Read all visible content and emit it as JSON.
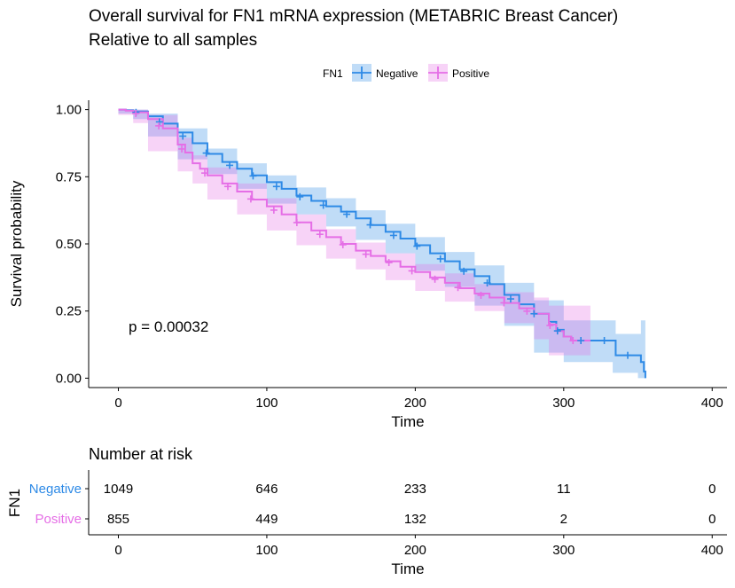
{
  "chart_data": [
    {
      "type": "line",
      "subtype": "kaplan-meier survival curve with confidence bands",
      "title": "Overall survival for FN1 mRNA expression (METABRIC Breast Cancer)",
      "subtitle": "Relative to all samples",
      "legend": {
        "title": "FN1",
        "position": "top",
        "entries": [
          "Negative",
          "Positive"
        ]
      },
      "xlabel": "Time",
      "ylabel": "Survival probability",
      "xlim": [
        -20,
        410
      ],
      "ylim": [
        -0.035,
        1.035
      ],
      "x_ticks": [
        0,
        100,
        200,
        300,
        400
      ],
      "y_ticks": [
        0.0,
        0.25,
        0.5,
        0.75,
        1.0
      ],
      "x_tick_labels": [
        "0",
        "100",
        "200",
        "300",
        "400"
      ],
      "y_tick_labels": [
        "0.00",
        "0.25",
        "0.50",
        "0.75",
        "1.00"
      ],
      "grid": false,
      "annotation": "p = 0.00032",
      "annotation_pos": [
        5,
        0.19
      ],
      "series": [
        {
          "name": "Negative",
          "color": "#2e8ae6",
          "points": [
            [
              0,
              1.0
            ],
            [
              5,
              0.998
            ],
            [
              10,
              0.993
            ],
            [
              20,
              0.975
            ],
            [
              30,
              0.948
            ],
            [
              40,
              0.915
            ],
            [
              50,
              0.875
            ],
            [
              60,
              0.835
            ],
            [
              70,
              0.805
            ],
            [
              80,
              0.78
            ],
            [
              90,
              0.755
            ],
            [
              100,
              0.73
            ],
            [
              110,
              0.705
            ],
            [
              120,
              0.68
            ],
            [
              130,
              0.66
            ],
            [
              140,
              0.64
            ],
            [
              150,
              0.62
            ],
            [
              160,
              0.595
            ],
            [
              170,
              0.57
            ],
            [
              180,
              0.545
            ],
            [
              190,
              0.52
            ],
            [
              200,
              0.495
            ],
            [
              210,
              0.465
            ],
            [
              220,
              0.435
            ],
            [
              230,
              0.405
            ],
            [
              240,
              0.38
            ],
            [
              250,
              0.35
            ],
            [
              260,
              0.31
            ],
            [
              270,
              0.275
            ],
            [
              280,
              0.24
            ],
            [
              290,
              0.21
            ],
            [
              295,
              0.18
            ],
            [
              300,
              0.155
            ],
            [
              305,
              0.14
            ],
            [
              320,
              0.14
            ],
            [
              333,
              0.14
            ],
            [
              335,
              0.085
            ],
            [
              340,
              0.085
            ],
            [
              350,
              0.085
            ],
            [
              352,
              0.06
            ],
            [
              354,
              0.025
            ],
            [
              355,
              0.0
            ]
          ],
          "ci_upper": [
            [
              0,
              1.0
            ],
            [
              10,
              1.0
            ],
            [
              20,
              0.985
            ],
            [
              40,
              0.93
            ],
            [
              60,
              0.855
            ],
            [
              80,
              0.8
            ],
            [
              100,
              0.755
            ],
            [
              120,
              0.71
            ],
            [
              140,
              0.67
            ],
            [
              160,
              0.625
            ],
            [
              180,
              0.575
            ],
            [
              200,
              0.525
            ],
            [
              220,
              0.47
            ],
            [
              240,
              0.42
            ],
            [
              260,
              0.355
            ],
            [
              280,
              0.29
            ],
            [
              300,
              0.215
            ],
            [
              320,
              0.215
            ],
            [
              333,
              0.215
            ],
            [
              335,
              0.165
            ],
            [
              350,
              0.165
            ],
            [
              352,
              0.215
            ],
            [
              355,
              0.215
            ]
          ],
          "ci_lower": [
            [
              0,
              1.0
            ],
            [
              10,
              0.985
            ],
            [
              20,
              0.965
            ],
            [
              40,
              0.9
            ],
            [
              60,
              0.815
            ],
            [
              80,
              0.76
            ],
            [
              100,
              0.705
            ],
            [
              120,
              0.65
            ],
            [
              140,
              0.61
            ],
            [
              160,
              0.565
            ],
            [
              180,
              0.515
            ],
            [
              200,
              0.465
            ],
            [
              220,
              0.4
            ],
            [
              240,
              0.34
            ],
            [
              260,
              0.27
            ],
            [
              280,
              0.195
            ],
            [
              300,
              0.095
            ],
            [
              320,
              0.06
            ],
            [
              333,
              0.06
            ],
            [
              335,
              0.02
            ],
            [
              350,
              0.02
            ],
            [
              352,
              0.0
            ],
            [
              355,
              0.0
            ]
          ],
          "censor_count": 22
        },
        {
          "name": "Positive",
          "color": "#e56ee6",
          "points": [
            [
              0,
              1.0
            ],
            [
              5,
              0.996
            ],
            [
              10,
              0.99
            ],
            [
              20,
              0.965
            ],
            [
              30,
              0.93
            ],
            [
              40,
              0.87
            ],
            [
              45,
              0.84
            ],
            [
              50,
              0.8
            ],
            [
              55,
              0.78
            ],
            [
              60,
              0.755
            ],
            [
              70,
              0.725
            ],
            [
              80,
              0.695
            ],
            [
              90,
              0.665
            ],
            [
              100,
              0.64
            ],
            [
              110,
              0.61
            ],
            [
              120,
              0.58
            ],
            [
              130,
              0.55
            ],
            [
              140,
              0.525
            ],
            [
              150,
              0.5
            ],
            [
              160,
              0.475
            ],
            [
              170,
              0.455
            ],
            [
              180,
              0.435
            ],
            [
              190,
              0.415
            ],
            [
              200,
              0.395
            ],
            [
              210,
              0.375
            ],
            [
              220,
              0.355
            ],
            [
              230,
              0.335
            ],
            [
              240,
              0.315
            ],
            [
              250,
              0.3
            ],
            [
              260,
              0.28
            ],
            [
              270,
              0.26
            ],
            [
              280,
              0.24
            ],
            [
              290,
              0.2
            ],
            [
              295,
              0.175
            ],
            [
              300,
              0.155
            ],
            [
              305,
              0.14
            ],
            [
              318,
              0.14
            ]
          ],
          "ci_upper": [
            [
              0,
              1.0
            ],
            [
              10,
              1.0
            ],
            [
              20,
              0.98
            ],
            [
              40,
              0.895
            ],
            [
              50,
              0.83
            ],
            [
              60,
              0.785
            ],
            [
              80,
              0.725
            ],
            [
              100,
              0.67
            ],
            [
              120,
              0.61
            ],
            [
              140,
              0.555
            ],
            [
              160,
              0.505
            ],
            [
              180,
              0.465
            ],
            [
              200,
              0.425
            ],
            [
              220,
              0.39
            ],
            [
              240,
              0.35
            ],
            [
              260,
              0.32
            ],
            [
              280,
              0.3
            ],
            [
              290,
              0.27
            ],
            [
              295,
              0.27
            ],
            [
              318,
              0.27
            ]
          ],
          "ci_lower": [
            [
              0,
              1.0
            ],
            [
              10,
              0.98
            ],
            [
              20,
              0.95
            ],
            [
              40,
              0.845
            ],
            [
              50,
              0.77
            ],
            [
              60,
              0.725
            ],
            [
              80,
              0.665
            ],
            [
              100,
              0.61
            ],
            [
              120,
              0.55
            ],
            [
              140,
              0.495
            ],
            [
              160,
              0.445
            ],
            [
              180,
              0.405
            ],
            [
              200,
              0.365
            ],
            [
              220,
              0.325
            ],
            [
              240,
              0.285
            ],
            [
              260,
              0.25
            ],
            [
              280,
              0.205
            ],
            [
              290,
              0.145
            ],
            [
              295,
              0.085
            ],
            [
              318,
              0.085
            ]
          ],
          "censor_count": 20
        }
      ]
    },
    {
      "type": "table",
      "title": "Number at risk",
      "ylabel": "FN1",
      "xlabel": "Time",
      "x_ticks": [
        0,
        100,
        200,
        300,
        400
      ],
      "x_tick_labels": [
        "0",
        "100",
        "200",
        "300",
        "400"
      ],
      "rows": [
        {
          "name": "Negative",
          "color": "#2e8ae6",
          "values": [
            "1049",
            "646",
            "233",
            "11",
            "0"
          ]
        },
        {
          "name": "Positive",
          "color": "#e56ee6",
          "values": [
            "855",
            "449",
            "132",
            "2",
            "0"
          ]
        }
      ]
    }
  ]
}
